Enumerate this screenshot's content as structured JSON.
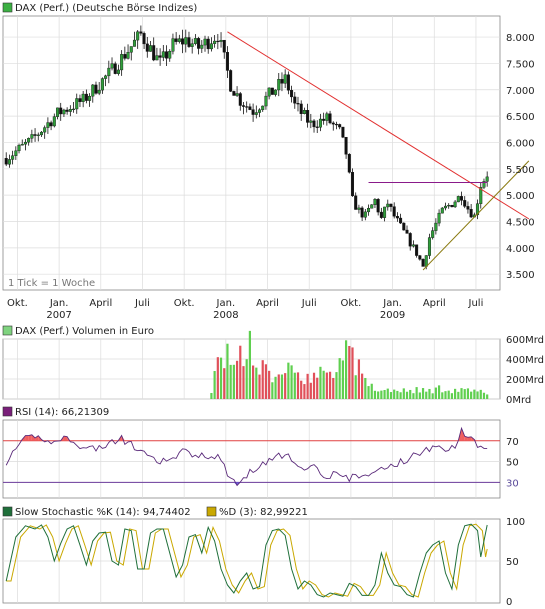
{
  "panels": {
    "price": {
      "label": "DAX (Perf.) (Deutsche Börse Indizes)",
      "swatch_color": "#3cb043",
      "note": "1 Tick = 1 Woche"
    },
    "volume": {
      "label": "DAX (Perf.) Volumen in Euro",
      "swatch_color": "#7fd37f"
    },
    "rsi": {
      "label": "RSI (14): 66,21309",
      "swatch_color": "#7a1f7a"
    },
    "stoch": {
      "k_label": "Slow Stochastic %K (14): 94,74402",
      "k_color": "#1f6f3a",
      "d_label": "%D (3): 82,99221",
      "d_color": "#c9a800"
    }
  },
  "x_axis": {
    "ticks": [
      {
        "label": "Okt.",
        "year": "",
        "t": 3.5
      },
      {
        "label": "Jan.",
        "year": "2007",
        "t": 16.5
      },
      {
        "label": "April",
        "year": "",
        "t": 29.5
      },
      {
        "label": "Juli",
        "year": "",
        "t": 42.5
      },
      {
        "label": "Okt.",
        "year": "",
        "t": 55.5
      },
      {
        "label": "Jan.",
        "year": "2008",
        "t": 68.5
      },
      {
        "label": "April",
        "year": "",
        "t": 81.5
      },
      {
        "label": "Juli",
        "year": "",
        "t": 94.5
      },
      {
        "label": "Okt.",
        "year": "",
        "t": 107.5
      },
      {
        "label": "Jan.",
        "year": "2009",
        "t": 120.5
      },
      {
        "label": "April",
        "year": "",
        "t": 133.5
      },
      {
        "label": "Juli",
        "year": "",
        "t": 146.5
      }
    ]
  },
  "chart_data": [
    {
      "type": "candlestick",
      "title": "DAX (Perf.) (Deutsche Börse Indizes)",
      "y_ticks": [
        "8.000",
        "7.500",
        "7.000",
        "6.500",
        "6.000",
        "5.500",
        "5.000",
        "4.500",
        "4.000",
        "3.500"
      ],
      "y_tick_values": [
        8000,
        7500,
        7000,
        6500,
        6000,
        5500,
        5000,
        4500,
        4000,
        3500
      ],
      "ylim": [
        3200,
        8400
      ],
      "week_anchors": [
        [
          0,
          5700
        ],
        [
          8,
          6050
        ],
        [
          16,
          6550
        ],
        [
          24,
          6800
        ],
        [
          32,
          7300
        ],
        [
          42,
          8050
        ],
        [
          48,
          7500
        ],
        [
          52,
          7850
        ],
        [
          56,
          7950
        ],
        [
          60,
          7800
        ],
        [
          66,
          8050
        ],
        [
          70,
          7100
        ],
        [
          73,
          6800
        ],
        [
          77,
          6600
        ],
        [
          82,
          6900
        ],
        [
          87,
          7200
        ],
        [
          90,
          6700
        ],
        [
          95,
          6350
        ],
        [
          100,
          6450
        ],
        [
          104,
          6200
        ],
        [
          106,
          5800
        ],
        [
          108,
          4900
        ],
        [
          110,
          4700
        ],
        [
          112,
          4600
        ],
        [
          115,
          4900
        ],
        [
          117,
          4550
        ],
        [
          119,
          4850
        ],
        [
          121,
          4600
        ],
        [
          124,
          4300
        ],
        [
          128,
          3900
        ],
        [
          130,
          3650
        ],
        [
          132,
          4200
        ],
        [
          136,
          4700
        ],
        [
          140,
          4900
        ],
        [
          142,
          5000
        ],
        [
          144,
          4750
        ],
        [
          146,
          4600
        ],
        [
          148,
          5200
        ],
        [
          150,
          5400
        ]
      ],
      "lines": [
        {
          "name": "Abwärtstrend",
          "color": "#e23030",
          "from": [
            69,
            8100
          ],
          "to": [
            163,
            4550
          ]
        },
        {
          "name": "Aufwärtstrend",
          "color": "#8a7a10",
          "from": [
            130,
            3580
          ],
          "to": [
            163,
            5650
          ]
        },
        {
          "name": "Horizontale",
          "color": "#8a1a8a",
          "from": [
            113,
            5240
          ],
          "to": [
            150,
            5240
          ]
        }
      ]
    },
    {
      "type": "bar",
      "title": "DAX (Perf.) Volumen in Euro",
      "y_ticks": [
        "600Mrd",
        "400Mrd",
        "200Mrd",
        "0Mrd"
      ],
      "y_tick_values": [
        600,
        400,
        200,
        0
      ],
      "ylim": [
        0,
        600
      ],
      "volume_from_week": 64,
      "anchors": [
        [
          64,
          100
        ],
        [
          66,
          350
        ],
        [
          70,
          420
        ],
        [
          74,
          380
        ],
        [
          76,
          560
        ],
        [
          80,
          280
        ],
        [
          84,
          230
        ],
        [
          88,
          260
        ],
        [
          92,
          250
        ],
        [
          96,
          230
        ],
        [
          100,
          280
        ],
        [
          104,
          300
        ],
        [
          106,
          430
        ],
        [
          108,
          380
        ],
        [
          110,
          330
        ],
        [
          112,
          170
        ],
        [
          116,
          100
        ],
        [
          120,
          90
        ],
        [
          124,
          80
        ],
        [
          128,
          90
        ],
        [
          132,
          80
        ],
        [
          136,
          110
        ],
        [
          140,
          90
        ],
        [
          144,
          80
        ],
        [
          148,
          70
        ],
        [
          150,
          60
        ]
      ]
    },
    {
      "type": "line",
      "title": "RSI (14): 66,21309",
      "y_ticks": [
        "70",
        "50",
        "30"
      ],
      "y_tick_values": [
        70,
        50,
        30
      ],
      "ylim": [
        15,
        90
      ],
      "levels": [
        70,
        30
      ],
      "anchors": [
        [
          0,
          50
        ],
        [
          3,
          60
        ],
        [
          6,
          72
        ],
        [
          9,
          74
        ],
        [
          12,
          72
        ],
        [
          15,
          68
        ],
        [
          18,
          73
        ],
        [
          21,
          71
        ],
        [
          24,
          62
        ],
        [
          27,
          63
        ],
        [
          30,
          64
        ],
        [
          33,
          68
        ],
        [
          36,
          72
        ],
        [
          39,
          66
        ],
        [
          42,
          60
        ],
        [
          45,
          52
        ],
        [
          48,
          50
        ],
        [
          52,
          52
        ],
        [
          55,
          60
        ],
        [
          58,
          56
        ],
        [
          61,
          57
        ],
        [
          64,
          55
        ],
        [
          66,
          54
        ],
        [
          68,
          45
        ],
        [
          70,
          34
        ],
        [
          72,
          28
        ],
        [
          74,
          33
        ],
        [
          76,
          42
        ],
        [
          79,
          44
        ],
        [
          82,
          52
        ],
        [
          85,
          56
        ],
        [
          88,
          54
        ],
        [
          91,
          45
        ],
        [
          94,
          45
        ],
        [
          97,
          44
        ],
        [
          99,
          38
        ],
        [
          101,
          36
        ],
        [
          103,
          41
        ],
        [
          105,
          36
        ],
        [
          107,
          32
        ],
        [
          109,
          38
        ],
        [
          111,
          35
        ],
        [
          113,
          36
        ],
        [
          116,
          42
        ],
        [
          119,
          45
        ],
        [
          122,
          48
        ],
        [
          125,
          52
        ],
        [
          128,
          58
        ],
        [
          131,
          62
        ],
        [
          134,
          62
        ],
        [
          137,
          63
        ],
        [
          140,
          65
        ],
        [
          142,
          80
        ],
        [
          145,
          72
        ],
        [
          147,
          66
        ],
        [
          150,
          66
        ]
      ]
    },
    {
      "type": "line",
      "title": "Slow Stochastic %K (14): 94,74402",
      "y_ticks": [
        "100",
        "50",
        "0"
      ],
      "y_tick_values": [
        100,
        50,
        0
      ],
      "ylim": [
        0,
        100
      ],
      "series": [
        {
          "name": "Slow Stochastic %K (14)",
          "anchors": [
            [
              0,
              25
            ],
            [
              3,
              80
            ],
            [
              6,
              94
            ],
            [
              9,
              90
            ],
            [
              11,
              95
            ],
            [
              13,
              80
            ],
            [
              15,
              50
            ],
            [
              17,
              72
            ],
            [
              19,
              90
            ],
            [
              21,
              94
            ],
            [
              23,
              70
            ],
            [
              25,
              45
            ],
            [
              27,
              75
            ],
            [
              29,
              85
            ],
            [
              31,
              86
            ],
            [
              33,
              50
            ],
            [
              35,
              45
            ],
            [
              37,
              90
            ],
            [
              39,
              88
            ],
            [
              41,
              40
            ],
            [
              43,
              40
            ],
            [
              45,
              85
            ],
            [
              47,
              90
            ],
            [
              49,
              90
            ],
            [
              51,
              60
            ],
            [
              53,
              30
            ],
            [
              55,
              45
            ],
            [
              57,
              80
            ],
            [
              59,
              83
            ],
            [
              61,
              60
            ],
            [
              63,
              92
            ],
            [
              65,
              75
            ],
            [
              67,
              40
            ],
            [
              69,
              20
            ],
            [
              71,
              10
            ],
            [
              73,
              25
            ],
            [
              75,
              35
            ],
            [
              77,
              15
            ],
            [
              79,
              18
            ],
            [
              81,
              70
            ],
            [
              83,
              88
            ],
            [
              85,
              90
            ],
            [
              87,
              82
            ],
            [
              89,
              40
            ],
            [
              91,
              15
            ],
            [
              93,
              25
            ],
            [
              95,
              20
            ],
            [
              97,
              8
            ],
            [
              99,
              5
            ],
            [
              101,
              10
            ],
            [
              103,
              8
            ],
            [
              105,
              6
            ],
            [
              107,
              22
            ],
            [
              109,
              18
            ],
            [
              111,
              7
            ],
            [
              113,
              7
            ],
            [
              115,
              20
            ],
            [
              117,
              60
            ],
            [
              119,
              35
            ],
            [
              121,
              20
            ],
            [
              123,
              18
            ],
            [
              125,
              8
            ],
            [
              127,
              5
            ],
            [
              129,
              35
            ],
            [
              131,
              60
            ],
            [
              133,
              70
            ],
            [
              135,
              75
            ],
            [
              137,
              35
            ],
            [
              139,
              15
            ],
            [
              141,
              70
            ],
            [
              143,
              94
            ],
            [
              145,
              96
            ],
            [
              147,
              88
            ],
            [
              148,
              55
            ],
            [
              149,
              75
            ],
            [
              150,
              95
            ]
          ]
        },
        {
          "name": "%D (3)",
          "lag": 1.5
        }
      ]
    }
  ]
}
